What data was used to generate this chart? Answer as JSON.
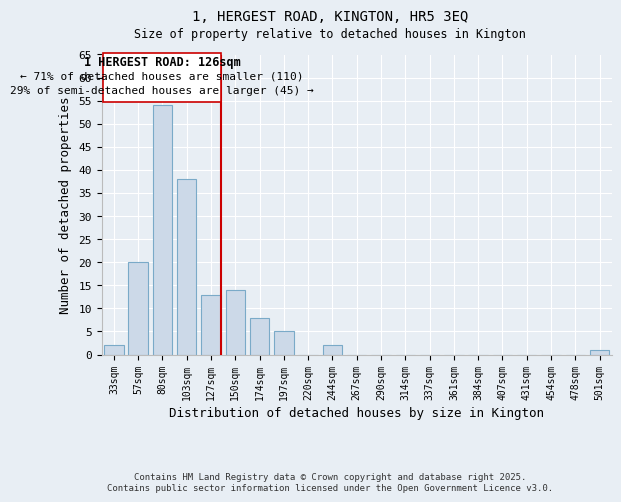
{
  "title": "1, HERGEST ROAD, KINGTON, HR5 3EQ",
  "subtitle": "Size of property relative to detached houses in Kington",
  "xlabel": "Distribution of detached houses by size in Kington",
  "ylabel": "Number of detached properties",
  "bar_labels": [
    "33sqm",
    "57sqm",
    "80sqm",
    "103sqm",
    "127sqm",
    "150sqm",
    "174sqm",
    "197sqm",
    "220sqm",
    "244sqm",
    "267sqm",
    "290sqm",
    "314sqm",
    "337sqm",
    "361sqm",
    "384sqm",
    "407sqm",
    "431sqm",
    "454sqm",
    "478sqm",
    "501sqm"
  ],
  "bar_heights": [
    2,
    20,
    54,
    38,
    13,
    14,
    8,
    5,
    0,
    2,
    0,
    0,
    0,
    0,
    0,
    0,
    0,
    0,
    0,
    0,
    1
  ],
  "bar_color": "#ccd9e8",
  "bar_edge_color": "#7aaac8",
  "vline_color": "#cc0000",
  "annotation_title": "1 HERGEST ROAD: 126sqm",
  "annotation_line1": "← 71% of detached houses are smaller (110)",
  "annotation_line2": "29% of semi-detached houses are larger (45) →",
  "annotation_box_edge": "#cc0000",
  "ylim": [
    0,
    65
  ],
  "yticks": [
    0,
    5,
    10,
    15,
    20,
    25,
    30,
    35,
    40,
    45,
    50,
    55,
    60,
    65
  ],
  "footer1": "Contains HM Land Registry data © Crown copyright and database right 2025.",
  "footer2": "Contains public sector information licensed under the Open Government Licence v3.0.",
  "bg_color": "#e8eef4",
  "plot_bg_color": "#e8eef4",
  "grid_color": "#ffffff",
  "vline_bar_index": 4
}
